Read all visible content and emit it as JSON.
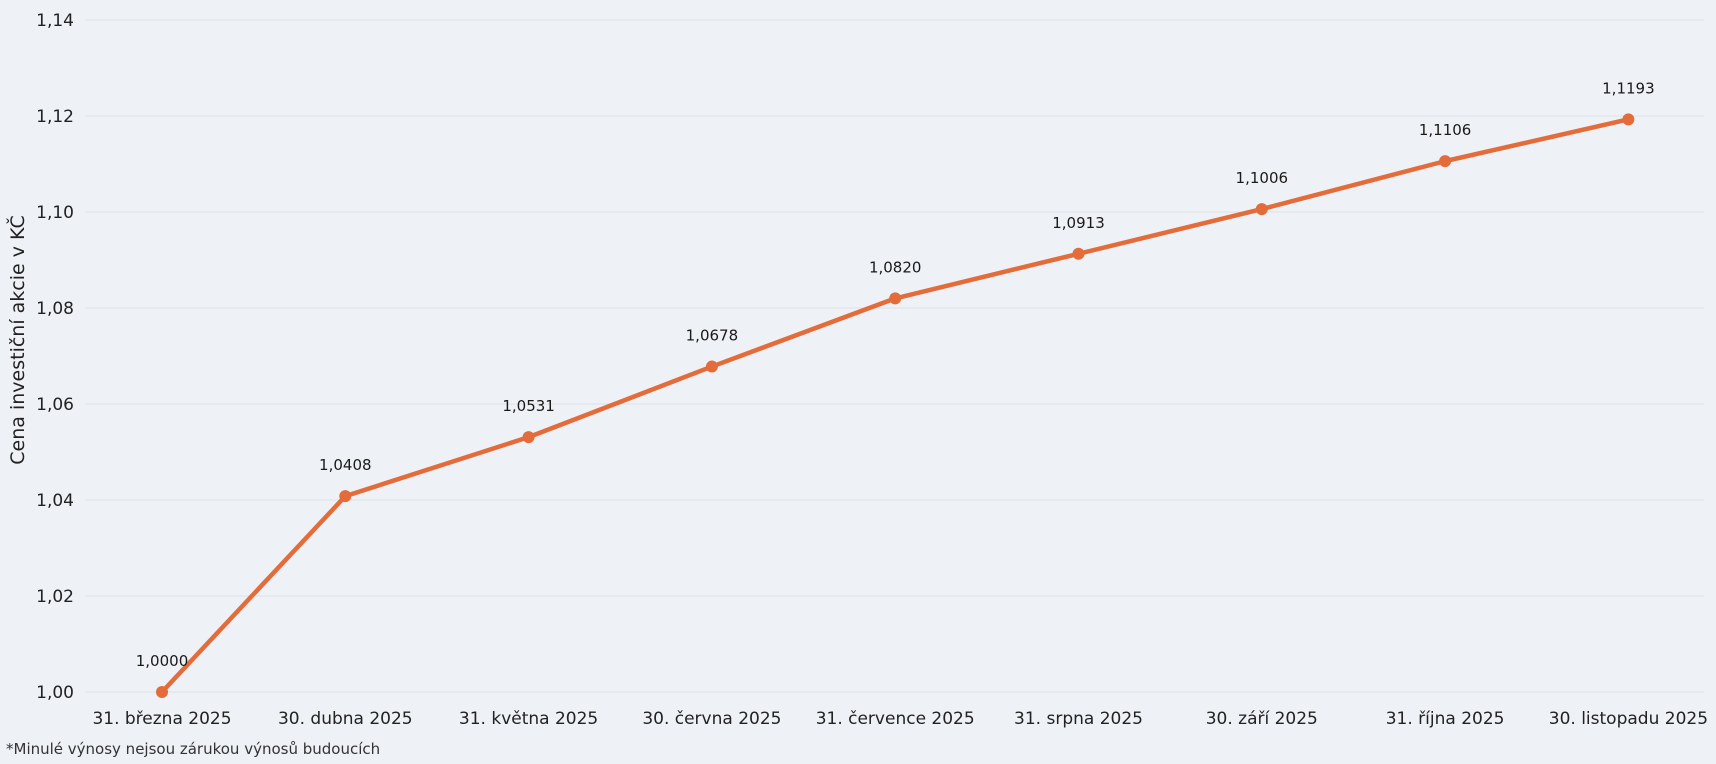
{
  "chart_data": {
    "type": "line",
    "title": "",
    "ylabel": "Cena investiční akcie v KČ",
    "xlabel": "",
    "ylim": [
      1.0,
      1.14
    ],
    "yticks": [
      1.0,
      1.02,
      1.04,
      1.06,
      1.08,
      1.1,
      1.12,
      1.14
    ],
    "grid": true,
    "legend": "none",
    "line_color": "#e36c3a",
    "grid_color": "#dde1e7",
    "categories": [
      "31. března 2025",
      "30. dubna 2025",
      "31. května 2025",
      "30. června 2025",
      "31. července 2025",
      "31. srpna 2025",
      "30. září 2025",
      "31. října 2025",
      "30. listopadu 2025"
    ],
    "values": [
      1.0,
      1.0408,
      1.0531,
      1.0678,
      1.082,
      1.0913,
      1.1006,
      1.1106,
      1.1193
    ],
    "data_labels": [
      "1,0000",
      "1,0408",
      "1,0531",
      "1,0678",
      "1,0820",
      "1,0913",
      "1,1006",
      "1,1106",
      "1,1193"
    ]
  },
  "footnote": "*Minulé výnosy nejsou zárukou výnosů budoucích"
}
